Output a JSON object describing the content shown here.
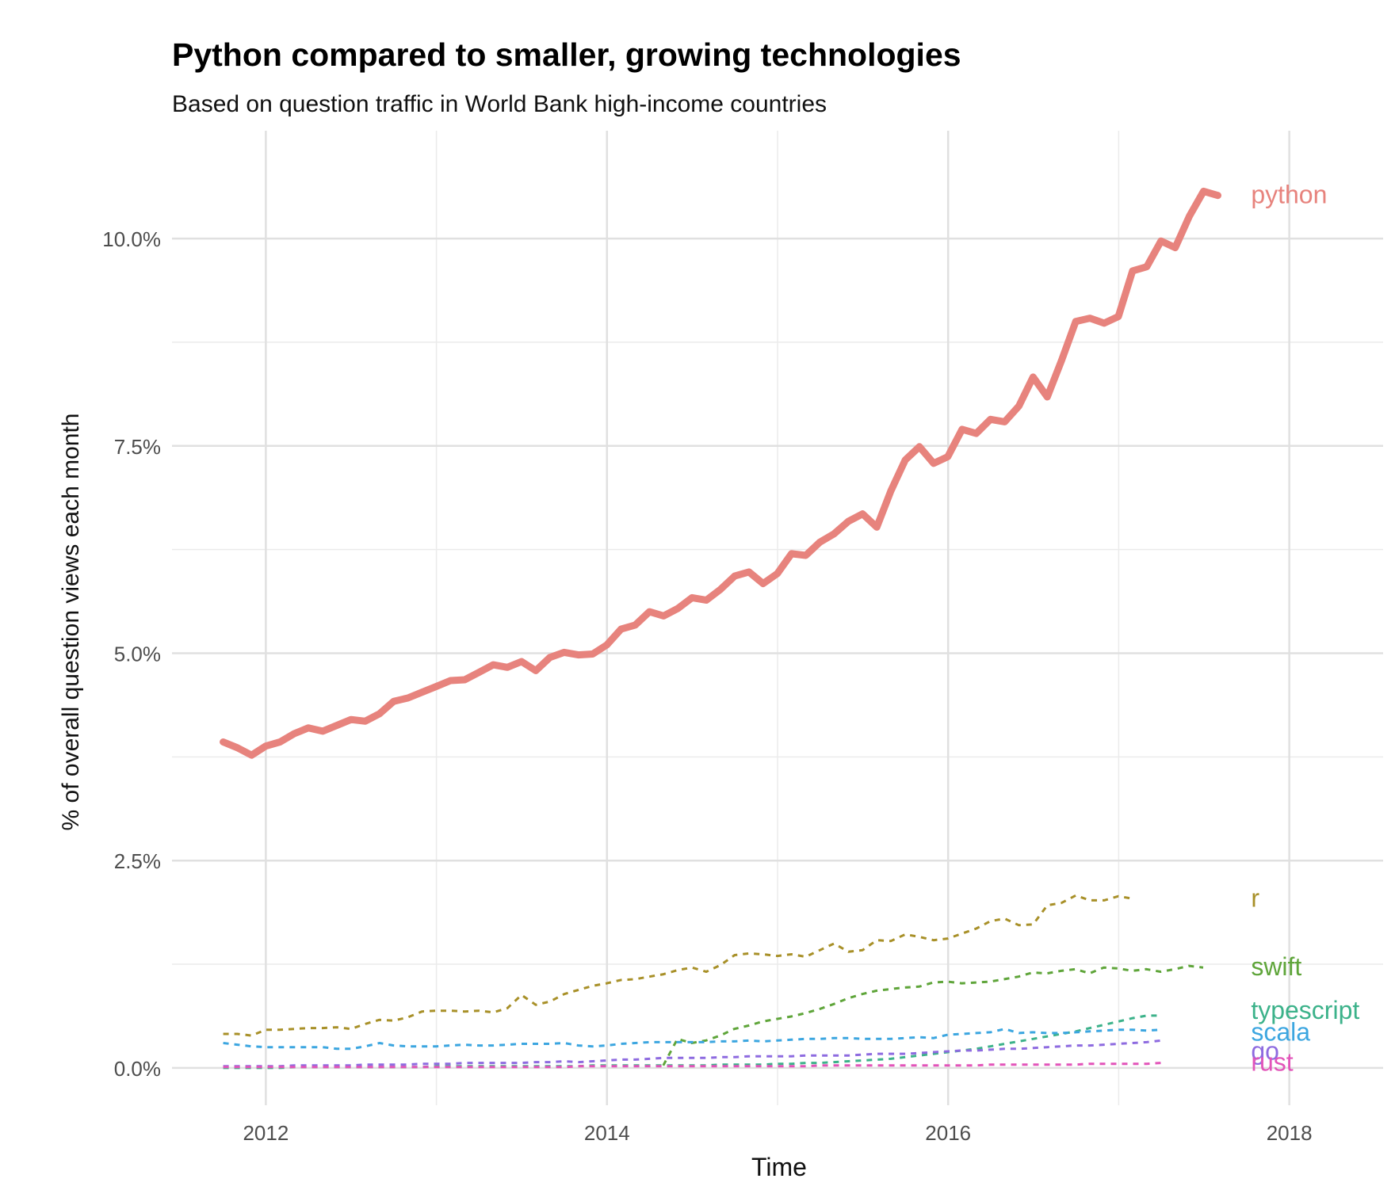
{
  "chart_data": {
    "type": "line",
    "title": "Python compared to smaller, growing technologies",
    "subtitle": "Based on question traffic in World Bank high-income countries",
    "xlabel": "Time",
    "ylabel": "% of overall question views each month",
    "xlim": [
      2011.45,
      2018.55
    ],
    "ylim": [
      -0.45,
      11.3
    ],
    "x_ticks": [
      2012,
      2014,
      2016,
      2018
    ],
    "x_tick_labels": [
      "2012",
      "2014",
      "2016",
      "2018"
    ],
    "y_ticks": [
      0,
      2.5,
      5,
      7.5,
      10
    ],
    "y_tick_labels": [
      "0.0%",
      "2.5%",
      "5.0%",
      "7.5%",
      "10.0%"
    ],
    "y_minor_ticks": [
      1.25,
      3.75,
      6.25,
      8.75
    ],
    "x_minor_ticks": [
      2011,
      2013,
      2015,
      2017
    ],
    "grid": true,
    "legend": "direct labels at line ends",
    "x_start": 2011.75,
    "x_step": 0.0833,
    "series": [
      {
        "name": "python",
        "color": "#E7837D",
        "style": "solid",
        "values": [
          3.93,
          3.86,
          3.77,
          3.88,
          3.93,
          4.03,
          4.1,
          4.06,
          4.13,
          4.2,
          4.18,
          4.27,
          4.42,
          4.46,
          4.53,
          4.6,
          4.67,
          4.68,
          4.77,
          4.86,
          4.83,
          4.9,
          4.79,
          4.95,
          5.01,
          4.98,
          4.99,
          5.1,
          5.29,
          5.34,
          5.5,
          5.45,
          5.54,
          5.67,
          5.64,
          5.77,
          5.93,
          5.98,
          5.84,
          5.96,
          6.2,
          6.18,
          6.34,
          6.44,
          6.59,
          6.68,
          6.52,
          6.96,
          7.33,
          7.49,
          7.29,
          7.37,
          7.7,
          7.65,
          7.82,
          7.79,
          7.98,
          8.33,
          8.09,
          8.53,
          9.0,
          9.04,
          8.98,
          9.06,
          9.61,
          9.66,
          9.97,
          9.89,
          10.27,
          10.57,
          10.52
        ]
      },
      {
        "name": "r",
        "color": "#A89028",
        "style": "dashed",
        "values": [
          0.41,
          0.41,
          0.39,
          0.46,
          0.46,
          0.47,
          0.48,
          0.48,
          0.49,
          0.47,
          0.53,
          0.58,
          0.57,
          0.61,
          0.68,
          0.69,
          0.69,
          0.68,
          0.69,
          0.67,
          0.72,
          0.88,
          0.76,
          0.8,
          0.89,
          0.94,
          0.99,
          1.02,
          1.06,
          1.07,
          1.1,
          1.13,
          1.18,
          1.21,
          1.16,
          1.24,
          1.36,
          1.38,
          1.37,
          1.35,
          1.37,
          1.34,
          1.42,
          1.5,
          1.4,
          1.42,
          1.54,
          1.53,
          1.61,
          1.58,
          1.54,
          1.56,
          1.62,
          1.68,
          1.77,
          1.8,
          1.72,
          1.73,
          1.96,
          1.99,
          2.08,
          2.02,
          2.02,
          2.07,
          2.04
        ]
      },
      {
        "name": "swift",
        "color": "#5FA53A",
        "style": "dashed",
        "x_start": 2014.33,
        "values": [
          0.03,
          0.35,
          0.3,
          0.33,
          0.39,
          0.47,
          0.51,
          0.56,
          0.59,
          0.62,
          0.66,
          0.71,
          0.77,
          0.84,
          0.89,
          0.93,
          0.95,
          0.97,
          0.98,
          1.03,
          1.04,
          1.02,
          1.03,
          1.04,
          1.07,
          1.1,
          1.15,
          1.14,
          1.17,
          1.19,
          1.14,
          1.21,
          1.2,
          1.17,
          1.19,
          1.16,
          1.19,
          1.23,
          1.21
        ]
      },
      {
        "name": "typescript",
        "color": "#3CB28A",
        "style": "dashed",
        "values": [
          0.0,
          0.0,
          0.0,
          0.0,
          0.0,
          0.01,
          0.01,
          0.01,
          0.01,
          0.01,
          0.01,
          0.01,
          0.01,
          0.01,
          0.01,
          0.02,
          0.02,
          0.02,
          0.02,
          0.02,
          0.02,
          0.02,
          0.02,
          0.02,
          0.02,
          0.02,
          0.03,
          0.03,
          0.03,
          0.03,
          0.03,
          0.03,
          0.03,
          0.03,
          0.03,
          0.04,
          0.04,
          0.04,
          0.04,
          0.05,
          0.05,
          0.06,
          0.06,
          0.07,
          0.08,
          0.09,
          0.1,
          0.11,
          0.13,
          0.15,
          0.17,
          0.19,
          0.21,
          0.23,
          0.26,
          0.29,
          0.32,
          0.35,
          0.38,
          0.41,
          0.44,
          0.48,
          0.52,
          0.56,
          0.6,
          0.63,
          0.63
        ]
      },
      {
        "name": "scala",
        "color": "#3CA6E0",
        "style": "dashed",
        "values": [
          0.3,
          0.28,
          0.26,
          0.25,
          0.25,
          0.25,
          0.25,
          0.25,
          0.23,
          0.23,
          0.26,
          0.3,
          0.27,
          0.26,
          0.26,
          0.26,
          0.27,
          0.28,
          0.27,
          0.27,
          0.28,
          0.29,
          0.29,
          0.29,
          0.3,
          0.27,
          0.26,
          0.27,
          0.29,
          0.3,
          0.31,
          0.31,
          0.31,
          0.31,
          0.31,
          0.32,
          0.32,
          0.33,
          0.32,
          0.33,
          0.34,
          0.35,
          0.35,
          0.36,
          0.36,
          0.35,
          0.35,
          0.35,
          0.36,
          0.37,
          0.36,
          0.4,
          0.41,
          0.42,
          0.43,
          0.47,
          0.42,
          0.43,
          0.42,
          0.42,
          0.43,
          0.44,
          0.45,
          0.46,
          0.46,
          0.45,
          0.46
        ]
      },
      {
        "name": "go",
        "color": "#8E6BE0",
        "style": "dashed",
        "values": [
          0.02,
          0.02,
          0.02,
          0.02,
          0.02,
          0.03,
          0.03,
          0.03,
          0.03,
          0.03,
          0.04,
          0.04,
          0.04,
          0.04,
          0.05,
          0.05,
          0.05,
          0.06,
          0.06,
          0.06,
          0.06,
          0.06,
          0.07,
          0.07,
          0.08,
          0.07,
          0.08,
          0.09,
          0.1,
          0.1,
          0.11,
          0.12,
          0.12,
          0.12,
          0.12,
          0.13,
          0.13,
          0.14,
          0.14,
          0.14,
          0.14,
          0.15,
          0.15,
          0.15,
          0.15,
          0.16,
          0.17,
          0.17,
          0.17,
          0.18,
          0.19,
          0.2,
          0.21,
          0.21,
          0.22,
          0.23,
          0.23,
          0.24,
          0.25,
          0.26,
          0.27,
          0.27,
          0.28,
          0.29,
          0.3,
          0.31,
          0.33
        ]
      },
      {
        "name": "rust",
        "color": "#E254B9",
        "style": "dashed",
        "values": [
          0.01,
          0.01,
          0.01,
          0.01,
          0.01,
          0.01,
          0.01,
          0.01,
          0.01,
          0.01,
          0.01,
          0.01,
          0.01,
          0.01,
          0.01,
          0.01,
          0.01,
          0.01,
          0.01,
          0.01,
          0.01,
          0.01,
          0.01,
          0.01,
          0.01,
          0.02,
          0.02,
          0.02,
          0.02,
          0.02,
          0.02,
          0.02,
          0.02,
          0.02,
          0.02,
          0.02,
          0.02,
          0.02,
          0.02,
          0.02,
          0.02,
          0.02,
          0.03,
          0.03,
          0.03,
          0.03,
          0.03,
          0.03,
          0.03,
          0.03,
          0.03,
          0.03,
          0.03,
          0.03,
          0.04,
          0.04,
          0.04,
          0.04,
          0.04,
          0.04,
          0.04,
          0.05,
          0.05,
          0.05,
          0.05,
          0.05,
          0.06
        ]
      }
    ]
  }
}
